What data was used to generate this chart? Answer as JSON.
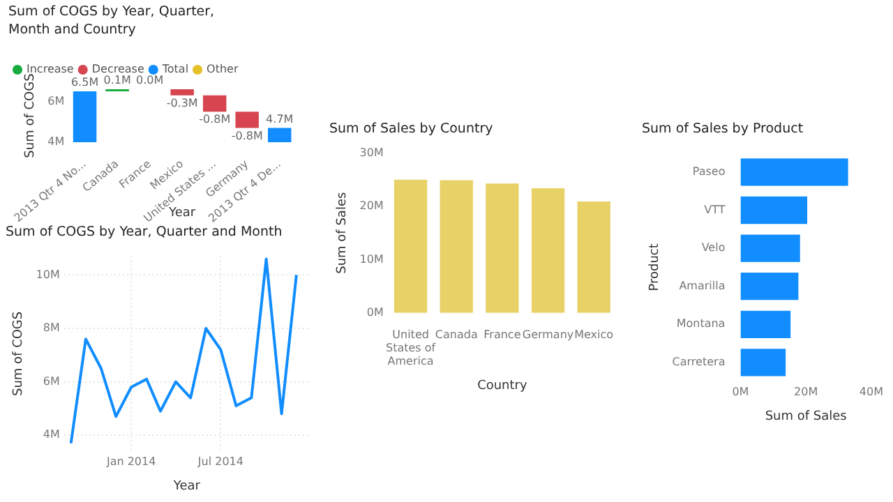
{
  "chart_data": [
    {
      "type": "bar",
      "title": "Sum of COGS by Year, Quarter, Month and Country",
      "xlabel": "Year",
      "ylabel": "Sum of COGS",
      "categories": [
        "2013 Qtr 4 No...",
        "Canada",
        "France",
        "Mexico",
        "United States ...",
        "Germany",
        "2013 Qtr 4 De..."
      ],
      "series": [
        {
          "name": "Increase",
          "color": "#1aab40",
          "base": [
            null,
            6.5,
            6.6,
            null,
            null,
            null,
            null
          ],
          "values": [
            null,
            0.1,
            0.0,
            null,
            null,
            null,
            null
          ],
          "value_labels": [
            null,
            "0.1M",
            "0.0M",
            null,
            null,
            null,
            null
          ]
        },
        {
          "name": "Decrease",
          "color": "#d64550",
          "base": [
            null,
            null,
            null,
            6.6,
            6.3,
            5.5,
            null
          ],
          "values": [
            null,
            null,
            null,
            -0.3,
            -0.8,
            -0.8,
            null
          ],
          "value_labels": [
            null,
            null,
            null,
            "-0.3M",
            "-0.8M",
            "-0.8M",
            null
          ]
        },
        {
          "name": "Total",
          "color": "#118dff",
          "values": [
            6.5,
            null,
            null,
            null,
            null,
            null,
            4.7
          ],
          "value_labels": [
            "6.5M",
            null,
            null,
            null,
            null,
            null,
            "4.7M"
          ]
        },
        {
          "name": "Other",
          "color": "#e6c229",
          "values": [
            null,
            null,
            null,
            null,
            null,
            null,
            null
          ]
        }
      ],
      "ylim": [
        4,
        6.6
      ],
      "yticks": [
        {
          "value": 4,
          "label": "4M"
        },
        {
          "value": 6,
          "label": "6M"
        }
      ],
      "legend": "top left"
    },
    {
      "type": "line",
      "title": "Sum of COGS by Year, Quarter and Month",
      "xlabel": "Year",
      "ylabel": "Sum of COGS",
      "x": [
        "2013-09",
        "2013-10",
        "2013-11",
        "2013-12",
        "2014-01",
        "2014-02",
        "2014-03",
        "2014-04",
        "2014-05",
        "2014-06",
        "2014-07",
        "2014-08",
        "2014-09",
        "2014-10",
        "2014-11",
        "2014-12"
      ],
      "series": [
        {
          "color": "#118dff",
          "values": [
            3.7,
            7.6,
            6.5,
            4.7,
            5.8,
            6.1,
            4.9,
            6.0,
            5.4,
            8.0,
            7.2,
            5.1,
            5.4,
            10.6,
            4.8,
            10.0
          ]
        }
      ],
      "xlim": [
        "2013-08-18",
        "2014-12-28"
      ],
      "xticks": [
        {
          "value": "2014-01",
          "label": "Jan 2014"
        },
        {
          "value": "2014-07",
          "label": "Jul 2014"
        }
      ],
      "ylim": [
        3.4,
        10.7
      ],
      "yticks": [
        {
          "value": 4,
          "label": "4M"
        },
        {
          "value": 6,
          "label": "6M"
        },
        {
          "value": 8,
          "label": "8M"
        },
        {
          "value": 10,
          "label": "10M"
        }
      ],
      "grid": true
    },
    {
      "type": "bar",
      "title": "Sum of Sales by Country",
      "xlabel": "Country",
      "ylabel": "Sum of Sales",
      "categories": [
        "United States of America",
        "Canada",
        "France",
        "Germany",
        "Mexico"
      ],
      "values": [
        25.0,
        24.9,
        24.3,
        23.4,
        20.9
      ],
      "color": "#e8d166",
      "ylim": [
        0,
        30
      ],
      "yticks": [
        {
          "value": 0,
          "label": "0M"
        },
        {
          "value": 10,
          "label": "10M"
        },
        {
          "value": 20,
          "label": "20M"
        },
        {
          "value": 30,
          "label": "30M"
        }
      ]
    },
    {
      "type": "bar",
      "orientation": "horizontal",
      "title": "Sum of Sales by Product",
      "xlabel": "Sum of Sales",
      "ylabel": "Product",
      "categories": [
        "Paseo",
        "VTT",
        "Velo",
        "Amarilla",
        "Montana",
        "Carretera"
      ],
      "values": [
        32.9,
        20.4,
        18.2,
        17.7,
        15.3,
        13.8
      ],
      "color": "#118dff",
      "xlim": [
        0,
        40
      ],
      "xticks": [
        {
          "value": 0,
          "label": "0M"
        },
        {
          "value": 20,
          "label": "20M"
        },
        {
          "value": 40,
          "label": "40M"
        }
      ]
    }
  ]
}
